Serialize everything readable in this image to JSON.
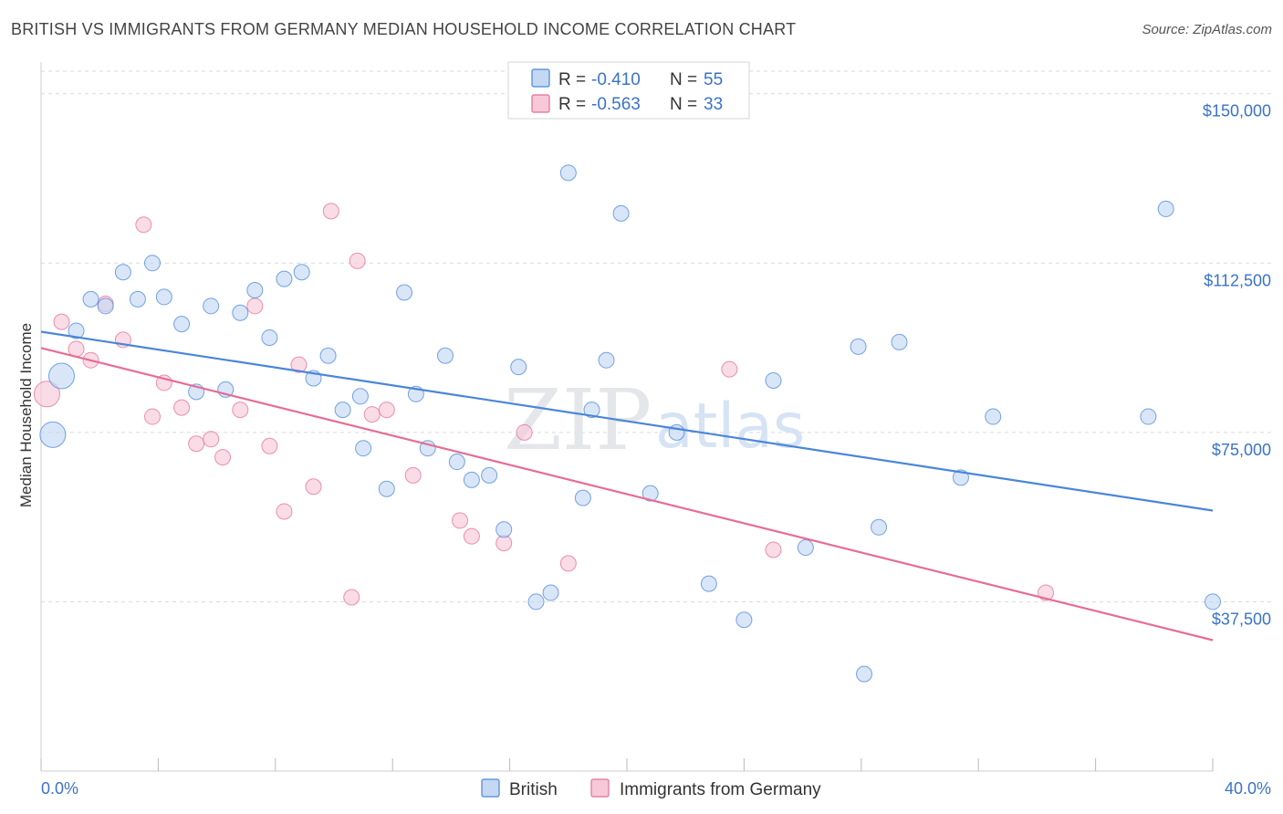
{
  "header": {
    "title": "BRITISH VS IMMIGRANTS FROM GERMANY MEDIAN HOUSEHOLD INCOME CORRELATION CHART",
    "source": "Source: ZipAtlas.com"
  },
  "watermark": {
    "zip": "ZIP",
    "atlas": "atlas"
  },
  "colors": {
    "british": "#4a86d8",
    "british_fill": "#c4d8f4",
    "germany": "#e56d95",
    "germany_fill": "#f7c9d8",
    "grid": "#d9d9d9",
    "tick_text": "#3a72c8"
  },
  "legend_top": {
    "rows": [
      {
        "r_label": "R = ",
        "r_value": "-0.410",
        "n_label": "N = ",
        "n_value": "55"
      },
      {
        "r_label": "R = ",
        "r_value": "-0.563",
        "n_label": "N = ",
        "n_value": "33"
      }
    ]
  },
  "legend_bottom": {
    "british": "British",
    "germany": "Immigrants from Germany"
  },
  "chart_data": {
    "type": "scatter",
    "title": "BRITISH VS IMMIGRANTS FROM GERMANY MEDIAN HOUSEHOLD INCOME CORRELATION CHART",
    "xlabel": "",
    "ylabel": "Median Household Income",
    "xlim": [
      0,
      40
    ],
    "ylim": [
      0,
      155000
    ],
    "x_tick_labels": [
      "0.0%",
      "40.0%"
    ],
    "y_ticks": [
      37500,
      75000,
      112500,
      150000
    ],
    "y_tick_labels": [
      "$37,500",
      "$75,000",
      "$112,500",
      "$150,000"
    ],
    "grid": true,
    "legend_position": "top-center",
    "series": [
      {
        "name": "British",
        "r": -0.41,
        "n": 55,
        "trend": {
          "x": [
            0,
            40
          ],
          "y": [
            97300,
            57700
          ]
        },
        "points": [
          {
            "x": 0.4,
            "y": 74500,
            "big": true
          },
          {
            "x": 0.7,
            "y": 87500,
            "big": true
          },
          {
            "x": 1.2,
            "y": 97500
          },
          {
            "x": 1.7,
            "y": 104500
          },
          {
            "x": 2.2,
            "y": 103000
          },
          {
            "x": 2.8,
            "y": 110500
          },
          {
            "x": 3.3,
            "y": 104500
          },
          {
            "x": 3.8,
            "y": 112500
          },
          {
            "x": 4.2,
            "y": 105000
          },
          {
            "x": 4.8,
            "y": 99000
          },
          {
            "x": 5.3,
            "y": 84000
          },
          {
            "x": 5.8,
            "y": 103000
          },
          {
            "x": 6.3,
            "y": 84500
          },
          {
            "x": 6.8,
            "y": 101500
          },
          {
            "x": 7.3,
            "y": 106500
          },
          {
            "x": 7.8,
            "y": 96000
          },
          {
            "x": 8.3,
            "y": 109000
          },
          {
            "x": 8.9,
            "y": 110500
          },
          {
            "x": 9.3,
            "y": 87000
          },
          {
            "x": 9.8,
            "y": 92000
          },
          {
            "x": 10.3,
            "y": 80000
          },
          {
            "x": 10.9,
            "y": 83000
          },
          {
            "x": 11.0,
            "y": 71500
          },
          {
            "x": 11.8,
            "y": 62500
          },
          {
            "x": 12.4,
            "y": 106000
          },
          {
            "x": 12.8,
            "y": 83500
          },
          {
            "x": 13.2,
            "y": 71500
          },
          {
            "x": 13.8,
            "y": 92000
          },
          {
            "x": 14.2,
            "y": 68500
          },
          {
            "x": 14.7,
            "y": 64500
          },
          {
            "x": 15.3,
            "y": 65500
          },
          {
            "x": 15.8,
            "y": 53500
          },
          {
            "x": 16.3,
            "y": 89500
          },
          {
            "x": 16.9,
            "y": 37500
          },
          {
            "x": 17.4,
            "y": 39500
          },
          {
            "x": 18.0,
            "y": 132500
          },
          {
            "x": 18.5,
            "y": 60500
          },
          {
            "x": 18.8,
            "y": 80000
          },
          {
            "x": 19.3,
            "y": 91000
          },
          {
            "x": 19.8,
            "y": 123500
          },
          {
            "x": 20.8,
            "y": 61500
          },
          {
            "x": 21.7,
            "y": 75000
          },
          {
            "x": 22.8,
            "y": 41500
          },
          {
            "x": 24.0,
            "y": 33500
          },
          {
            "x": 25.0,
            "y": 86500
          },
          {
            "x": 26.1,
            "y": 49500
          },
          {
            "x": 27.9,
            "y": 94000
          },
          {
            "x": 28.1,
            "y": 21500
          },
          {
            "x": 28.6,
            "y": 54000
          },
          {
            "x": 29.3,
            "y": 95000
          },
          {
            "x": 31.4,
            "y": 65000
          },
          {
            "x": 32.5,
            "y": 78500
          },
          {
            "x": 37.8,
            "y": 78500
          },
          {
            "x": 38.4,
            "y": 124500
          },
          {
            "x": 40.0,
            "y": 37500
          }
        ]
      },
      {
        "name": "Immigrants from Germany",
        "r": -0.563,
        "n": 33,
        "trend": {
          "x": [
            0,
            40
          ],
          "y": [
            93700,
            29000
          ]
        },
        "points": [
          {
            "x": 0.2,
            "y": 83500,
            "big": true
          },
          {
            "x": 0.7,
            "y": 99500
          },
          {
            "x": 1.2,
            "y": 93500
          },
          {
            "x": 1.7,
            "y": 91000
          },
          {
            "x": 2.2,
            "y": 103500
          },
          {
            "x": 2.8,
            "y": 95500
          },
          {
            "x": 3.5,
            "y": 121000
          },
          {
            "x": 3.8,
            "y": 78500
          },
          {
            "x": 4.2,
            "y": 86000
          },
          {
            "x": 4.8,
            "y": 80500
          },
          {
            "x": 5.3,
            "y": 72500
          },
          {
            "x": 5.8,
            "y": 73500
          },
          {
            "x": 6.2,
            "y": 69500
          },
          {
            "x": 6.8,
            "y": 80000
          },
          {
            "x": 7.3,
            "y": 103000
          },
          {
            "x": 7.8,
            "y": 72000
          },
          {
            "x": 8.3,
            "y": 57500
          },
          {
            "x": 8.8,
            "y": 90000
          },
          {
            "x": 9.3,
            "y": 63000
          },
          {
            "x": 9.9,
            "y": 124000
          },
          {
            "x": 10.6,
            "y": 38500
          },
          {
            "x": 10.8,
            "y": 113000
          },
          {
            "x": 11.3,
            "y": 79000
          },
          {
            "x": 11.8,
            "y": 80000
          },
          {
            "x": 12.7,
            "y": 65500
          },
          {
            "x": 14.3,
            "y": 55500
          },
          {
            "x": 14.7,
            "y": 52000
          },
          {
            "x": 15.8,
            "y": 50500
          },
          {
            "x": 16.5,
            "y": 75000
          },
          {
            "x": 18.0,
            "y": 46000
          },
          {
            "x": 23.5,
            "y": 89000
          },
          {
            "x": 25.0,
            "y": 49000
          },
          {
            "x": 34.3,
            "y": 39500
          }
        ]
      }
    ]
  }
}
